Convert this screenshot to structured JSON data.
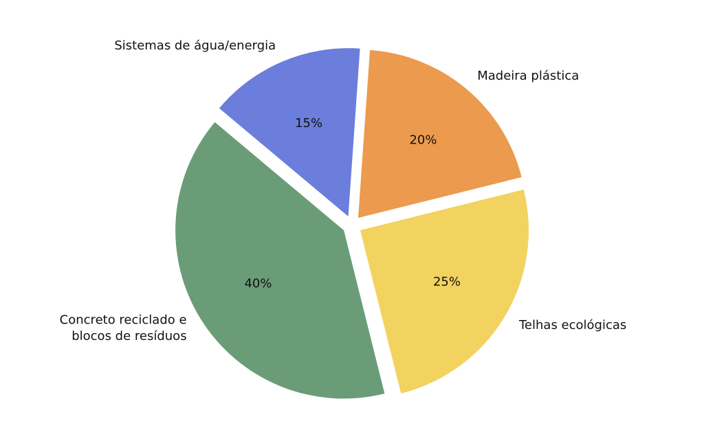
{
  "chart_data": {
    "type": "pie",
    "categories": [
      "Madeira plástica",
      "Telhas ecológicas",
      "Concreto reciclado e\nblocos de resíduos",
      "Sistemas de água/energia"
    ],
    "values": [
      20,
      25,
      40,
      15
    ],
    "value_labels": [
      "20%",
      "25%",
      "40%",
      "15%"
    ],
    "colors": [
      "#ec9a4e",
      "#f2d360",
      "#6a9c78",
      "#6b7edb"
    ]
  }
}
